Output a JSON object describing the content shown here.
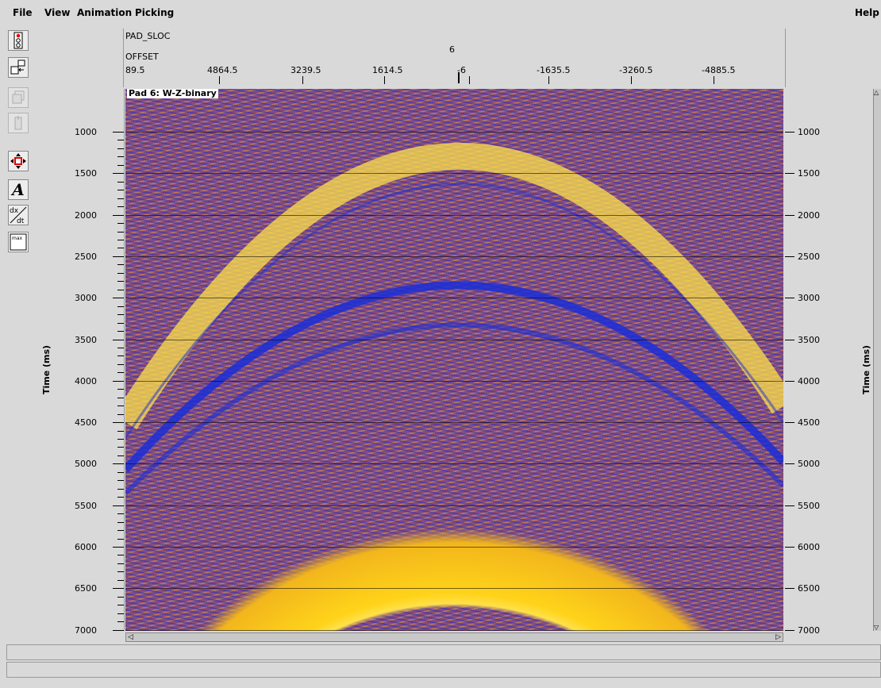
{
  "menu": {
    "file": "File",
    "view": "View",
    "animation": "Animation",
    "picking": "Picking",
    "help": "Help"
  },
  "toolbar": {
    "tools": [
      "traffic-light-icon",
      "window-stack-icon",
      "copy-disabled-icon",
      "paste-disabled-icon",
      "move-arrows-icon",
      "text-annotation-icon",
      "dx-dt-icon",
      "max-icon"
    ],
    "text_tool_label": "A",
    "dxdt_label": "dx/dt",
    "max_label": "max"
  },
  "header": {
    "pad_sloc_label": "PAD_SLOC",
    "pad_sloc_value": "6",
    "offset_label": "OFFSET",
    "offset_ticks": [
      "89.5",
      "4864.5",
      "3239.5",
      "1614.5",
      "-6",
      "-1635.5",
      "-3260.5",
      "-4885.5"
    ]
  },
  "plot": {
    "pad_label": "Pad 6: W-Z-binary",
    "y_axis_title": "Time (ms)",
    "y_ticks": [
      "1000",
      "1500",
      "2000",
      "2500",
      "3000",
      "3500",
      "4000",
      "4500",
      "5000",
      "5500",
      "6000",
      "6500",
      "7000"
    ],
    "colors": {
      "yellow": "#ffd31a",
      "blue": "#1a2ed8",
      "orange": "#d2502a",
      "purple": "#7a4a8c"
    }
  }
}
